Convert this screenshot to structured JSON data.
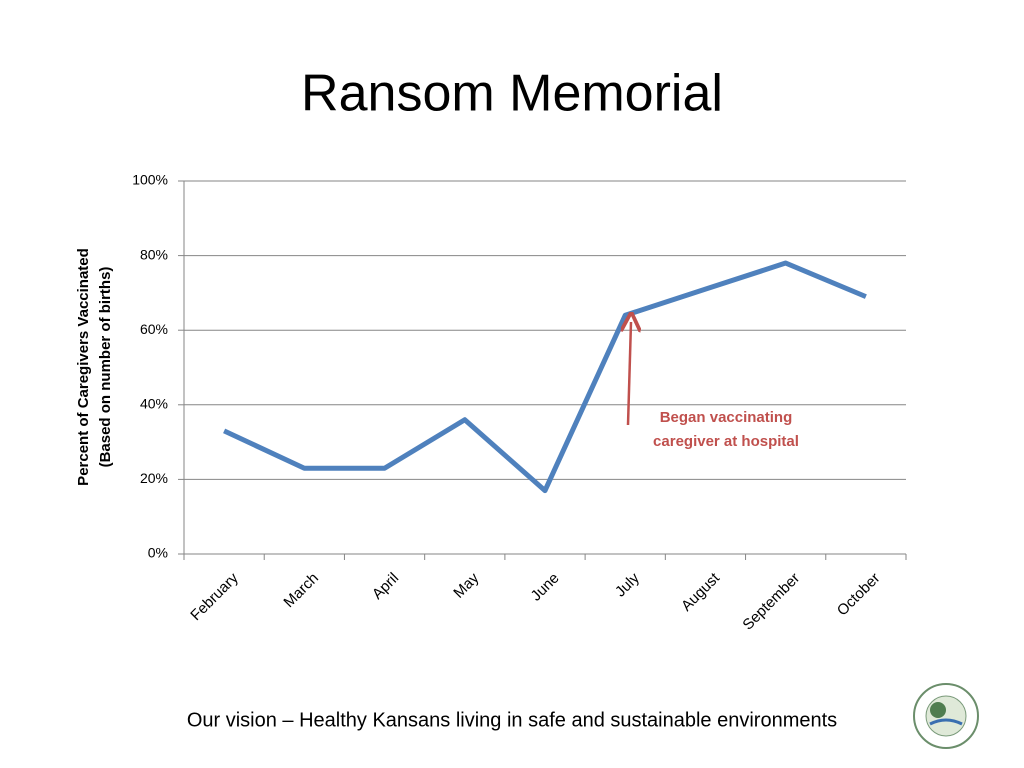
{
  "chart_data": {
    "type": "line",
    "title": "Ransom Memorial",
    "y_label": [
      "Percent of Caregivers Vaccinated",
      "(Based on number of births)"
    ],
    "categories": [
      "February",
      "March",
      "April",
      "May",
      "June",
      "July",
      "August",
      "September",
      "October"
    ],
    "series": [
      {
        "color": "#4f81bd",
        "values": [
          33,
          23,
          23,
          36,
          17,
          64,
          71,
          78,
          69
        ]
      }
    ],
    "ylim": [
      0,
      100
    ],
    "yticks": [
      {
        "value": 0,
        "label": "0%"
      },
      {
        "value": 20,
        "label": "20%"
      },
      {
        "value": 40,
        "label": "40%"
      },
      {
        "value": 60,
        "label": "60%"
      },
      {
        "value": 80,
        "label": "80%"
      },
      {
        "value": 100,
        "label": "100%"
      }
    ],
    "grid": true,
    "annotation": {
      "lines": [
        "Began vaccinating",
        "caregiver at hospital"
      ],
      "color": "#c0504d"
    }
  },
  "footer": "Our vision – Healthy Kansans living in safe and sustainable environments"
}
